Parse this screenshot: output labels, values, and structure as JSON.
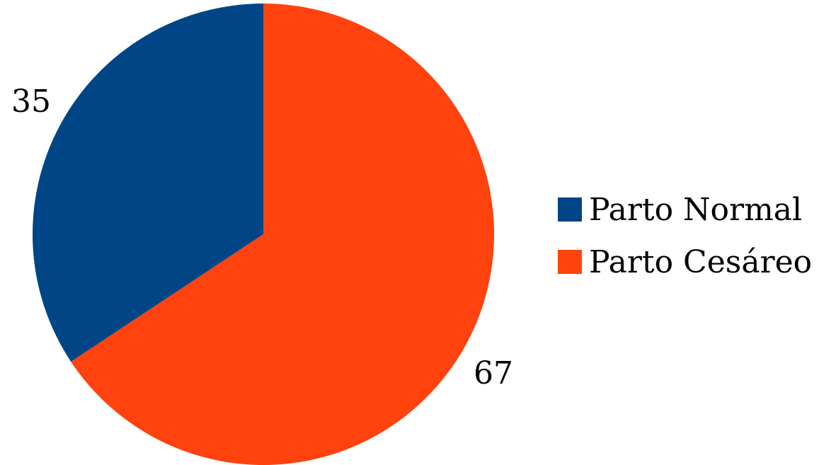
{
  "chart_data": {
    "type": "pie",
    "categories": [
      "Parto Normal",
      "Parto Cesáreo"
    ],
    "values": [
      35,
      67
    ],
    "colors": [
      "#004586",
      "#ff420e"
    ],
    "data_labels": [
      "35",
      "67"
    ],
    "legend_placement": "right",
    "start_angle": "top",
    "direction": "counter-clockwise"
  }
}
